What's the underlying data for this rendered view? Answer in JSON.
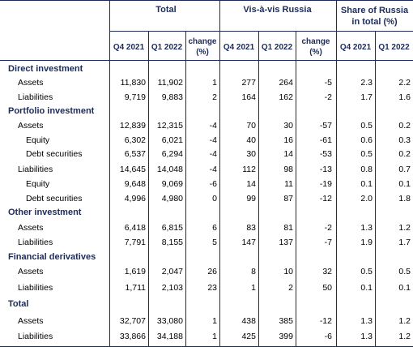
{
  "headers": {
    "groups": [
      "Total",
      "Vis-à-vis Russia",
      "Share of Russia in total (%)"
    ],
    "share_line1": "Share of Russia",
    "share_line2": "in total (%)",
    "sub": [
      "Q4 2021",
      "Q1 2022",
      "change (%)",
      "Q4 2021",
      "Q1 2022",
      "change (%)",
      "Q4 2021",
      "Q1 2022"
    ],
    "change_line1": "change",
    "change_line2": "(%)"
  },
  "rows": [
    {
      "label": "Direct investment",
      "type": "section",
      "values": []
    },
    {
      "label": "Assets",
      "type": "l1",
      "values": [
        "11,830",
        "11,902",
        "1",
        "277",
        "264",
        "-5",
        "2.3",
        "2.2"
      ]
    },
    {
      "label": "Liabilities",
      "type": "l1",
      "values": [
        "9,719",
        "9,883",
        "2",
        "164",
        "162",
        "-2",
        "1.7",
        "1.6"
      ]
    },
    {
      "label": "Portfolio investment",
      "type": "section",
      "values": []
    },
    {
      "label": "Assets",
      "type": "l1",
      "values": [
        "12,839",
        "12,315",
        "-4",
        "70",
        "30",
        "-57",
        "0.5",
        "0.2"
      ]
    },
    {
      "label": "Equity",
      "type": "l2",
      "values": [
        "6,302",
        "6,021",
        "-4",
        "40",
        "16",
        "-61",
        "0.6",
        "0.3"
      ]
    },
    {
      "label": "Debt securities",
      "type": "l2",
      "values": [
        "6,537",
        "6,294",
        "-4",
        "30",
        "14",
        "-53",
        "0.5",
        "0.2"
      ]
    },
    {
      "label": "Liabilities",
      "type": "l1",
      "values": [
        "14,645",
        "14,048",
        "-4",
        "112",
        "98",
        "-13",
        "0.8",
        "0.7"
      ]
    },
    {
      "label": "Equity",
      "type": "l2",
      "values": [
        "9,648",
        "9,069",
        "-6",
        "14",
        "11",
        "-19",
        "0.1",
        "0.1"
      ]
    },
    {
      "label": "Debt securities",
      "type": "l2",
      "values": [
        "4,996",
        "4,980",
        "0",
        "99",
        "87",
        "-12",
        "2.0",
        "1.8"
      ]
    },
    {
      "label": "Other investment",
      "type": "section",
      "values": []
    },
    {
      "label": "Assets",
      "type": "l1",
      "values": [
        "6,418",
        "6,815",
        "6",
        "83",
        "81",
        "-2",
        "1.3",
        "1.2"
      ]
    },
    {
      "label": "Liabilities",
      "type": "l1",
      "values": [
        "7,791",
        "8,155",
        "5",
        "147",
        "137",
        "-7",
        "1.9",
        "1.7"
      ]
    },
    {
      "label": "Financial derivatives",
      "type": "section",
      "values": []
    },
    {
      "label": "Assets",
      "type": "l1",
      "values": [
        "1,619",
        "2,047",
        "26",
        "8",
        "10",
        "32",
        "0.5",
        "0.5"
      ]
    },
    {
      "label": "Liabilities",
      "type": "l1",
      "values": [
        "1,711",
        "2,103",
        "23",
        "1",
        "2",
        "50",
        "0.1",
        "0.1"
      ]
    },
    {
      "label": "Total",
      "type": "section",
      "values": []
    },
    {
      "label": "Assets",
      "type": "l1",
      "values": [
        "32,707",
        "33,080",
        "1",
        "438",
        "385",
        "-12",
        "1.3",
        "1.2"
      ]
    },
    {
      "label": "Liabilities",
      "type": "l1",
      "values": [
        "33,866",
        "34,188",
        "1",
        "425",
        "399",
        "-6",
        "1.3",
        "1.2"
      ]
    }
  ]
}
